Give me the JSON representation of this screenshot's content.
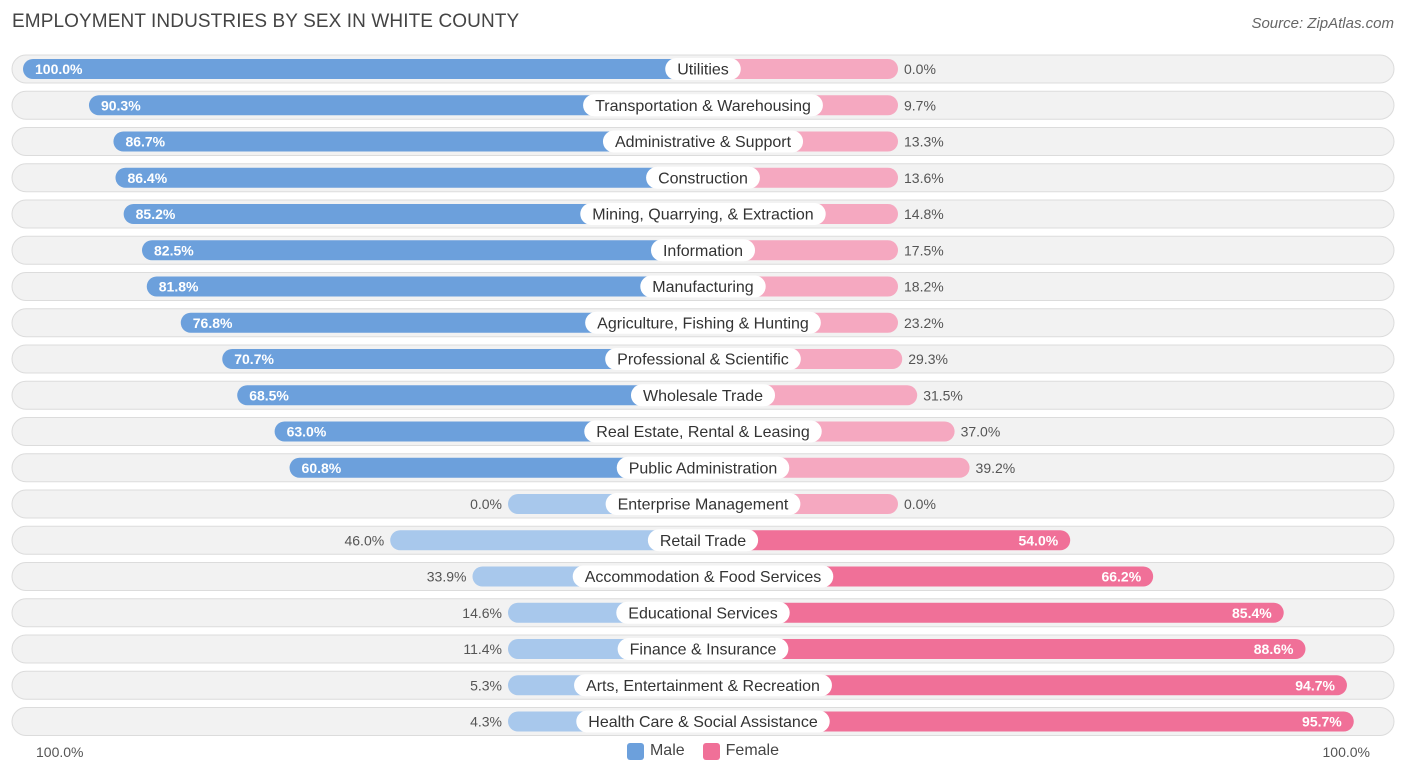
{
  "chart_data": {
    "type": "bar",
    "orientation": "horizontal-diverging",
    "title": "EMPLOYMENT INDUSTRIES BY SEX IN WHITE COUNTY",
    "source": "Source: ZipAtlas.com",
    "categories": [
      "Utilities",
      "Transportation & Warehousing",
      "Administrative & Support",
      "Construction",
      "Mining, Quarrying, & Extraction",
      "Information",
      "Manufacturing",
      "Agriculture, Fishing & Hunting",
      "Professional & Scientific",
      "Wholesale Trade",
      "Real Estate, Rental & Leasing",
      "Public Administration",
      "Enterprise Management",
      "Retail Trade",
      "Accommodation & Food Services",
      "Educational Services",
      "Finance & Insurance",
      "Arts, Entertainment & Recreation",
      "Health Care & Social Assistance"
    ],
    "series": [
      {
        "name": "Male",
        "values": [
          100.0,
          90.3,
          86.7,
          86.4,
          85.2,
          82.5,
          81.8,
          76.8,
          70.7,
          68.5,
          63.0,
          60.8,
          0.0,
          46.0,
          33.9,
          14.6,
          11.4,
          5.3,
          4.3
        ],
        "labels": [
          "100.0%",
          "90.3%",
          "86.7%",
          "86.4%",
          "85.2%",
          "82.5%",
          "81.8%",
          "76.8%",
          "70.7%",
          "68.5%",
          "63.0%",
          "60.8%",
          "0.0%",
          "46.0%",
          "33.9%",
          "14.6%",
          "11.4%",
          "5.3%",
          "4.3%"
        ]
      },
      {
        "name": "Female",
        "values": [
          0.0,
          9.7,
          13.3,
          13.6,
          14.8,
          17.5,
          18.2,
          23.2,
          29.3,
          31.5,
          37.0,
          39.2,
          0.0,
          54.0,
          66.2,
          85.4,
          88.6,
          94.7,
          95.7
        ],
        "labels": [
          "0.0%",
          "9.7%",
          "13.3%",
          "13.6%",
          "14.8%",
          "17.5%",
          "18.2%",
          "23.2%",
          "29.3%",
          "31.5%",
          "37.0%",
          "39.2%",
          "0.0%",
          "54.0%",
          "66.2%",
          "85.4%",
          "88.6%",
          "94.7%",
          "95.7%"
        ]
      }
    ],
    "xlim": [
      0,
      100
    ],
    "axis_left_label": "100.0%",
    "axis_right_label": "100.0%",
    "legend": [
      "Male",
      "Female"
    ],
    "legend_position": "bottom-center",
    "colors": {
      "male_strong": "#6ca0dc",
      "male_light": "#a8c8ec",
      "female_strong": "#f07098",
      "female_light": "#f5a8c0",
      "row_bg": "#f2f2f2",
      "row_border": "#dcdcdc"
    }
  }
}
